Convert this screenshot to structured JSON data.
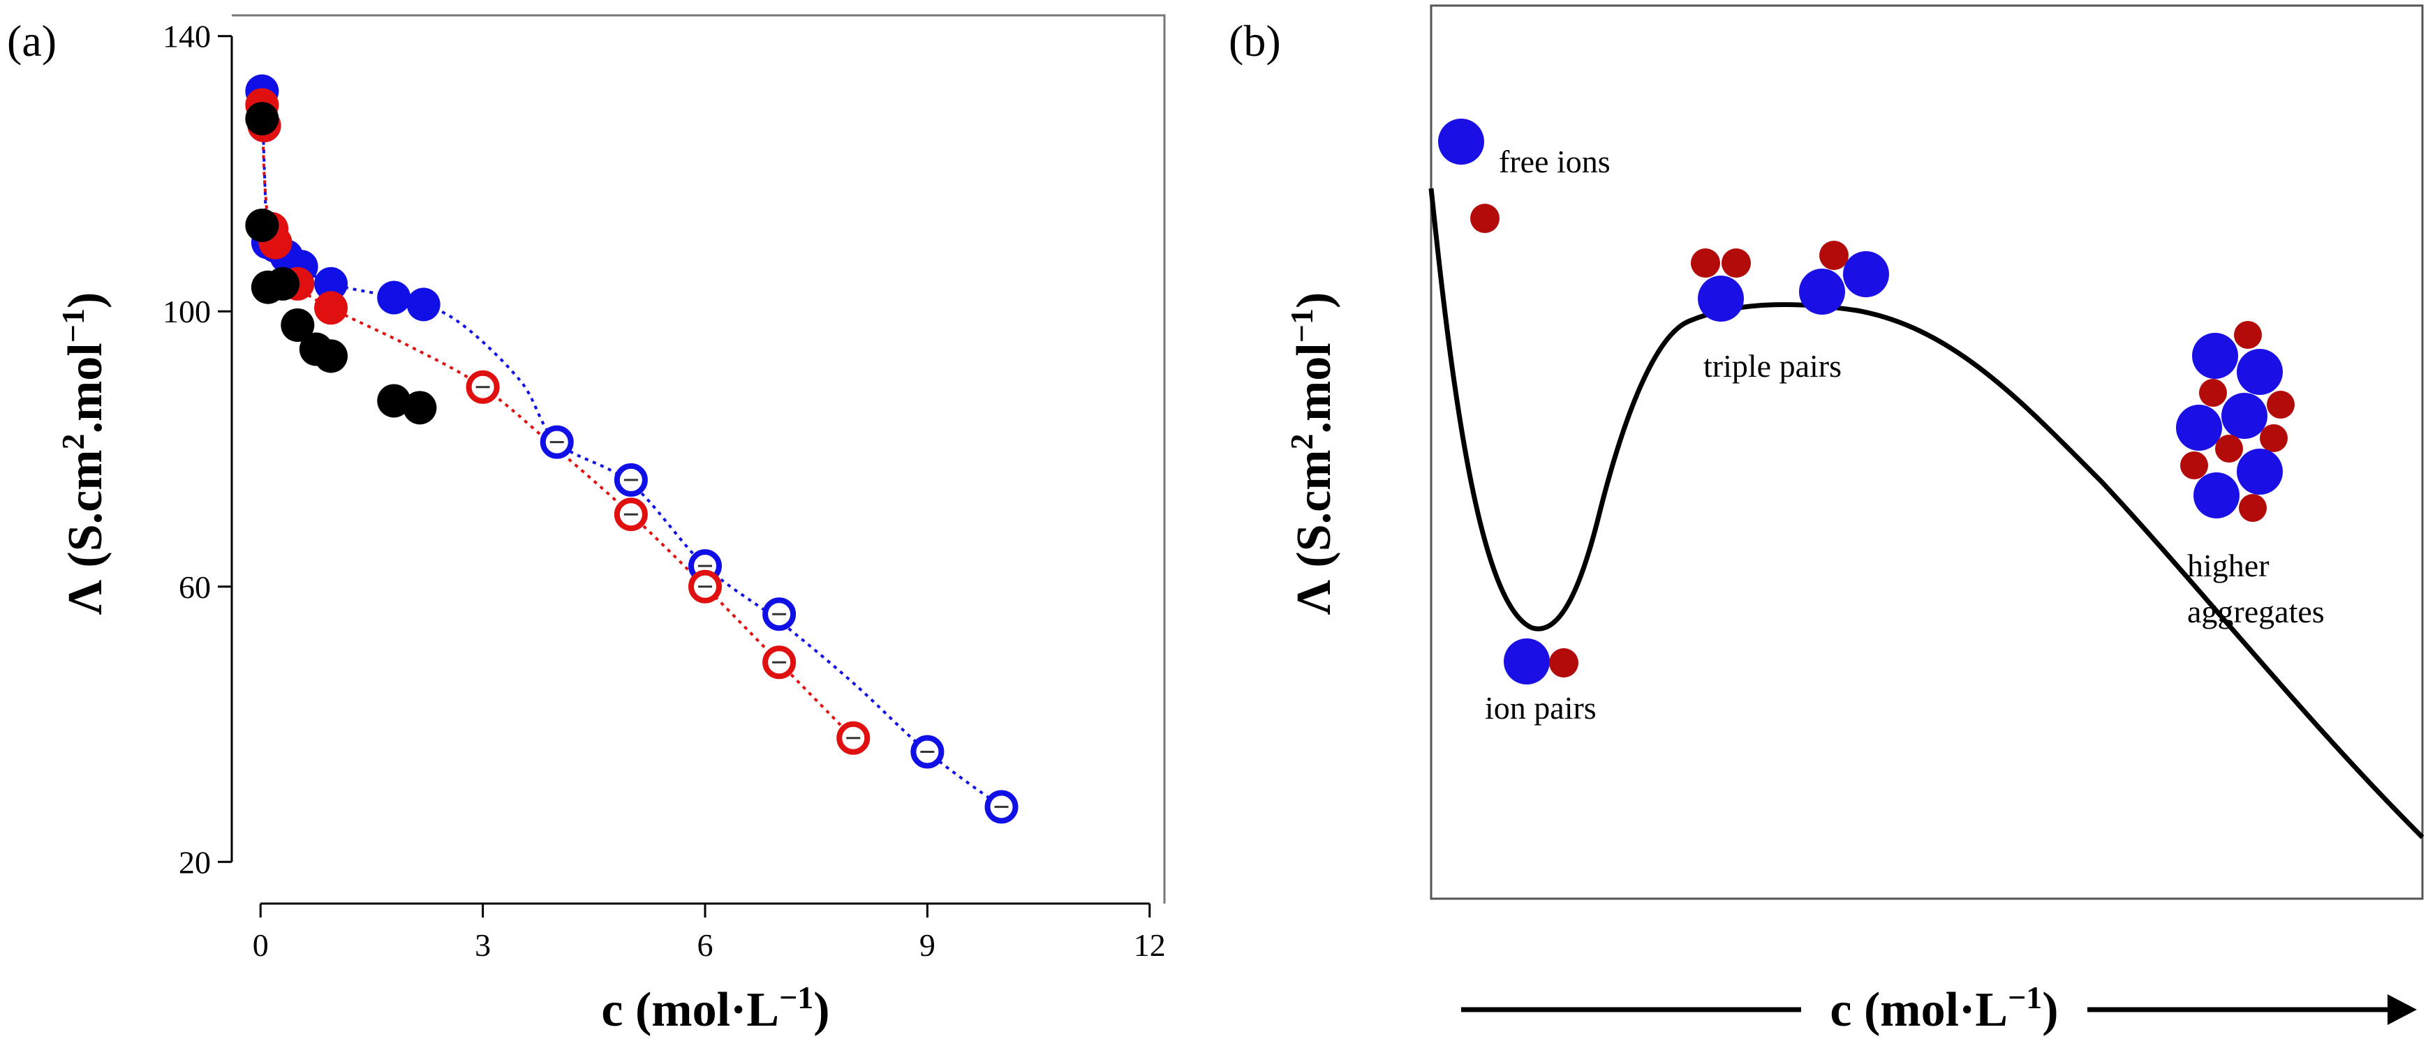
{
  "colors": {
    "blue": "#1010e6",
    "red": "#e01010",
    "black": "#000000",
    "dark_red": "#b30a0a",
    "ball_blue": "#1a10e6"
  },
  "chart_data": [
    {
      "panel_label": "(a)",
      "type": "scatter",
      "xlabel": {
        "main": "c (mol·L",
        "sup": "−1",
        "close": ")"
      },
      "ylabel": {
        "main": "Λ (S.cm",
        "sup1": "2",
        "mid": ".mol",
        "sup2": "−1",
        "close": ")"
      },
      "xlim": [
        -0.2,
        12.2
      ],
      "ylim": [
        18,
        142
      ],
      "x_ticks": [
        {
          "value": 0,
          "label": "0"
        },
        {
          "value": 3,
          "label": "3"
        },
        {
          "value": 6,
          "label": "6"
        },
        {
          "value": 9,
          "label": "9"
        },
        {
          "value": 12,
          "label": "12"
        }
      ],
      "y_ticks": [
        {
          "value": 20,
          "label": "20"
        },
        {
          "value": 60,
          "label": "60"
        },
        {
          "value": 100,
          "label": "100"
        },
        {
          "value": 140,
          "label": "140"
        }
      ],
      "series": [
        {
          "name": "blue-filled",
          "color": "blue",
          "marker": "filled",
          "points": [
            [
              0.02,
              132
            ],
            [
              0.05,
              127
            ],
            [
              0.1,
              110
            ],
            [
              0.2,
              109.5
            ],
            [
              0.35,
              108
            ],
            [
              0.55,
              106.5
            ],
            [
              0.95,
              104
            ],
            [
              1.8,
              102
            ],
            [
              2.2,
              101
            ]
          ]
        },
        {
          "name": "blue-open",
          "color": "blue",
          "marker": "open",
          "points": [
            [
              4,
              81
            ],
            [
              5,
              75.5
            ],
            [
              6,
              63
            ],
            [
              7,
              56
            ],
            [
              9,
              36
            ],
            [
              10,
              28
            ]
          ]
        },
        {
          "name": "red-filled",
          "color": "red",
          "marker": "filled",
          "points": [
            [
              0.02,
              130
            ],
            [
              0.05,
              127
            ],
            [
              0.15,
              112
            ],
            [
              0.2,
              110
            ],
            [
              0.5,
              104
            ],
            [
              0.95,
              100.5
            ]
          ]
        },
        {
          "name": "red-open",
          "color": "red",
          "marker": "open",
          "points": [
            [
              3,
              89
            ],
            [
              5,
              70.5
            ],
            [
              6,
              60
            ],
            [
              7,
              49
            ],
            [
              8,
              38
            ]
          ]
        },
        {
          "name": "black-filled",
          "color": "black",
          "marker": "filled",
          "points": [
            [
              0.02,
              128
            ],
            [
              0.02,
              112.5
            ],
            [
              0.1,
              103.5
            ],
            [
              0.3,
              104
            ],
            [
              0.5,
              98
            ],
            [
              0.75,
              94.5
            ],
            [
              0.95,
              93.5
            ],
            [
              1.8,
              87
            ],
            [
              2.15,
              86
            ]
          ]
        }
      ],
      "fits": [
        {
          "color": "blue",
          "points": [
            [
              0.02,
              132
            ],
            [
              0.06,
              118
            ],
            [
              0.1,
              110
            ],
            [
              0.3,
              108
            ],
            [
              0.55,
              106.5
            ],
            [
              0.95,
              104
            ],
            [
              1.8,
              102
            ],
            [
              2.6,
              99
            ],
            [
              3.5,
              90
            ],
            [
              4,
              81
            ],
            [
              5,
              75
            ],
            [
              6,
              63
            ],
            [
              7,
              55
            ],
            [
              8,
              46
            ],
            [
              9,
              36
            ],
            [
              10,
              28
            ]
          ]
        },
        {
          "color": "red",
          "points": [
            [
              0.02,
              130
            ],
            [
              0.06,
              118
            ],
            [
              0.15,
              112
            ],
            [
              0.5,
              104
            ],
            [
              0.95,
              100.5
            ],
            [
              2,
              95
            ],
            [
              3,
              89
            ],
            [
              4,
              80
            ],
            [
              5,
              70.5
            ],
            [
              6,
              60
            ],
            [
              7,
              49
            ],
            [
              8,
              38
            ]
          ]
        }
      ]
    },
    {
      "panel_label": "(b)",
      "type": "line",
      "xlabel": {
        "main": "c (mol·L",
        "sup": "−1",
        "close": ")"
      },
      "ylabel": {
        "main": "Λ (S.cm",
        "sup1": "2",
        "mid": ".mol",
        "sup2": "−1",
        "close": ")"
      },
      "annotations": {
        "free_ions": "free ions",
        "ion_pairs": "ion pairs",
        "triple_pairs": "triple pairs",
        "higher_line1": "higher",
        "higher_line2": "aggregates"
      }
    }
  ]
}
